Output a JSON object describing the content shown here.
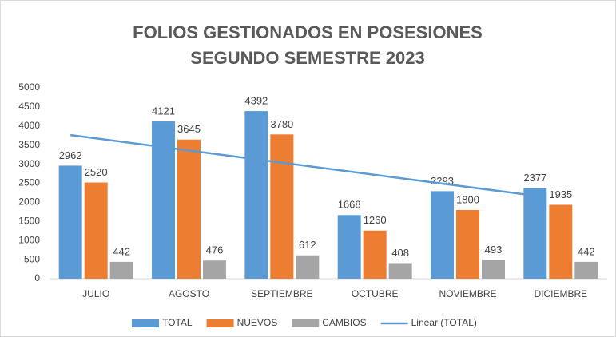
{
  "chart_data": {
    "type": "bar",
    "title": "FOLIOS GESTIONADOS EN POSESIONES",
    "subtitle": "SEGUNDO SEMESTRE 2023",
    "categories": [
      "JULIO",
      "AGOSTO",
      "SEPTIEMBRE",
      "OCTUBRE",
      "NOVIEMBRE",
      "DICIEMBRE"
    ],
    "series": [
      {
        "name": "TOTAL",
        "color": "#5b9bd5",
        "values": [
          2962,
          4121,
          4392,
          1668,
          2293,
          2377
        ],
        "trendline": {
          "type": "linear",
          "name": "Linear (TOTAL)",
          "color": "#5b9bd5"
        }
      },
      {
        "name": "NUEVOS",
        "color": "#ed7d31",
        "values": [
          2520,
          3645,
          3780,
          1260,
          1800,
          1935
        ]
      },
      {
        "name": "CAMBIOS",
        "color": "#a5a5a5",
        "values": [
          442,
          476,
          612,
          408,
          493,
          442
        ]
      }
    ],
    "ylim": [
      0,
      5000
    ],
    "yticks": [
      0,
      500,
      1000,
      1500,
      2000,
      2500,
      3000,
      3500,
      4000,
      4500,
      5000
    ],
    "grid": false,
    "legend": "bottom"
  }
}
